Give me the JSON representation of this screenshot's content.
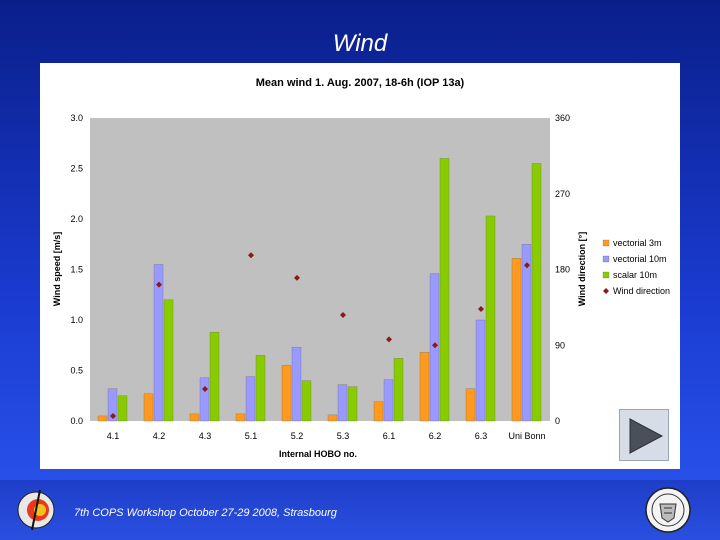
{
  "slide_title": "Wind",
  "footer": {
    "text": "7th COPS Workshop  October 27-29 2008, Strasbourg"
  },
  "colors": {
    "background": "#1a3bd0",
    "vectorial_3m": "#ff9a1f",
    "vectorial_10m": "#9999ff",
    "scalar_10m": "#88cc00",
    "wind_direction": "#8b1a1a",
    "plot_area": "#c0c0c0"
  },
  "icons": {
    "play": "play-icon",
    "logo": "cops-logo-icon",
    "seal": "university-seal-icon"
  },
  "chart_data": {
    "type": "bar",
    "title": "Mean wind 1. Aug. 2007, 18-6h (IOP 13a)",
    "xlabel": "Internal HOBO no.",
    "ylabel": "Wind speed [m/s]",
    "y2label": "Wind direction [°]",
    "categories": [
      "4.1",
      "4.2",
      "4.3",
      "5.1",
      "5.2",
      "5.3",
      "6.1",
      "6.2",
      "6.3",
      "Uni Bonn"
    ],
    "ylim": [
      0,
      3.0
    ],
    "yticks": [
      "0.0",
      "0.5",
      "1.0",
      "1.5",
      "2.0",
      "2.5",
      "3.0"
    ],
    "y2lim": [
      0,
      360
    ],
    "y2ticks": [
      "0",
      "90",
      "180",
      "270",
      "360"
    ],
    "grid": false,
    "legend_position": "right",
    "series": [
      {
        "name": "vectorial 3m",
        "kind": "bar",
        "color": "#ff9a1f",
        "values": [
          0.05,
          0.27,
          0.07,
          0.07,
          0.55,
          0.06,
          0.19,
          0.68,
          0.32,
          1.61
        ]
      },
      {
        "name": "vectorial 10m",
        "kind": "bar",
        "color": "#9999ff",
        "values": [
          0.32,
          1.55,
          0.43,
          0.44,
          0.73,
          0.36,
          0.41,
          1.46,
          1.0,
          1.75
        ]
      },
      {
        "name": "scalar 10m",
        "kind": "bar",
        "color": "#88cc00",
        "values": [
          0.25,
          1.2,
          0.88,
          0.65,
          0.4,
          0.34,
          0.62,
          2.6,
          2.03,
          2.55
        ]
      },
      {
        "name": "Wind direction",
        "kind": "scatter",
        "axis": "y2",
        "color": "#8b1a1a",
        "values": [
          6,
          162,
          38,
          197,
          170,
          126,
          97,
          90,
          133,
          185
        ]
      }
    ]
  }
}
